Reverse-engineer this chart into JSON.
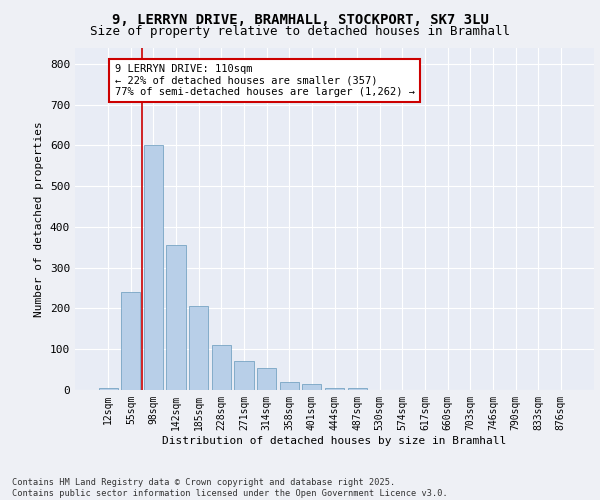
{
  "title_line1": "9, LERRYN DRIVE, BRAMHALL, STOCKPORT, SK7 3LU",
  "title_line2": "Size of property relative to detached houses in Bramhall",
  "xlabel": "Distribution of detached houses by size in Bramhall",
  "ylabel": "Number of detached properties",
  "categories": [
    "12sqm",
    "55sqm",
    "98sqm",
    "142sqm",
    "185sqm",
    "228sqm",
    "271sqm",
    "314sqm",
    "358sqm",
    "401sqm",
    "444sqm",
    "487sqm",
    "530sqm",
    "574sqm",
    "617sqm",
    "660sqm",
    "703sqm",
    "746sqm",
    "790sqm",
    "833sqm",
    "876sqm"
  ],
  "values": [
    5,
    240,
    600,
    355,
    205,
    110,
    70,
    55,
    20,
    15,
    5,
    5,
    0,
    0,
    0,
    0,
    0,
    0,
    0,
    0,
    0
  ],
  "bar_color": "#b8cfe8",
  "bar_edge_color": "#6699bb",
  "vline_color": "#cc0000",
  "vline_x": 1.5,
  "annotation_text": "9 LERRYN DRIVE: 110sqm\n← 22% of detached houses are smaller (357)\n77% of semi-detached houses are larger (1,262) →",
  "ylim": [
    0,
    840
  ],
  "yticks": [
    0,
    100,
    200,
    300,
    400,
    500,
    600,
    700,
    800
  ],
  "plot_bg": "#e8ecf5",
  "fig_bg": "#eef0f5",
  "grid_color": "#ffffff",
  "footer_text": "Contains HM Land Registry data © Crown copyright and database right 2025.\nContains public sector information licensed under the Open Government Licence v3.0."
}
